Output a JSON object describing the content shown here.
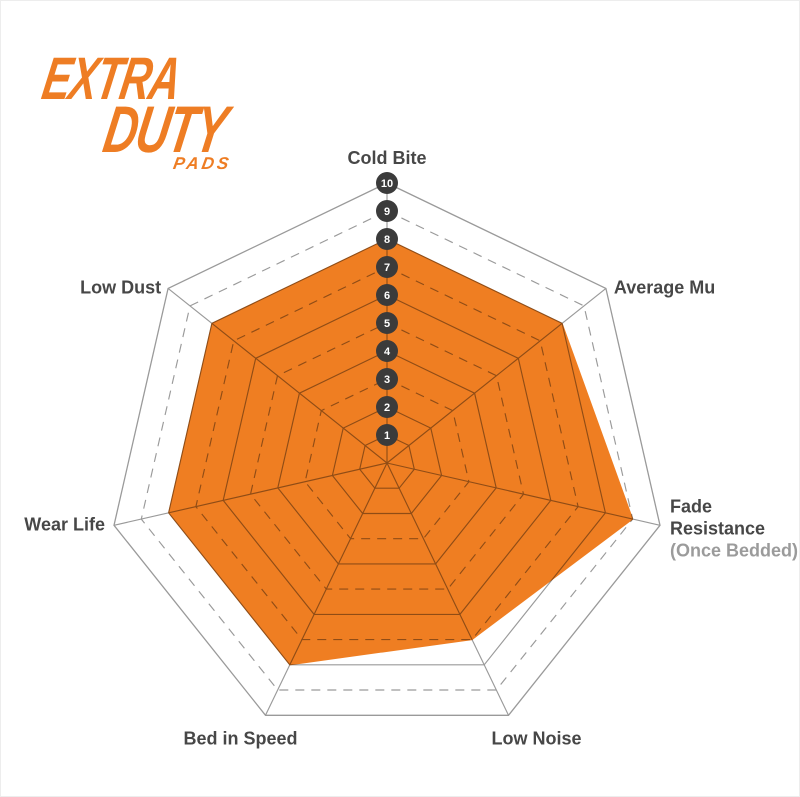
{
  "logo": {
    "line1": "EXTRA",
    "line2": "DUTY",
    "line3": "PADS",
    "color": "#EE7D24"
  },
  "chart_data": {
    "type": "radar",
    "title": "",
    "scale": {
      "min": 0,
      "max": 10,
      "ticks": [
        1,
        2,
        3,
        4,
        5,
        6,
        7,
        8,
        9,
        10
      ]
    },
    "axes": [
      {
        "label": "Cold Bite",
        "value": 8
      },
      {
        "label": "Average Mu",
        "value": 8
      },
      {
        "label": "Fade Resistance",
        "label_lines": [
          "Fade",
          "Resistance"
        ],
        "sublabel": "(Once Bedded)",
        "value": 9
      },
      {
        "label": "Low Noise",
        "value": 7
      },
      {
        "label": "Bed in Speed",
        "value": 8
      },
      {
        "label": "Wear Life",
        "value": 8
      },
      {
        "label": "Low Dust",
        "value": 8
      }
    ],
    "grid": "on",
    "legend": "none",
    "ring_style": "even rings solid, odd rings dashed, outer ring solid",
    "fill_color": "#EF7E22",
    "grid_color": "#9A9A9A",
    "tick_circle_color": "#3B3B3B",
    "tick_text_color": "#FFFFFF",
    "label_color": "#474747",
    "sublabel_color": "#9B9B9B"
  }
}
